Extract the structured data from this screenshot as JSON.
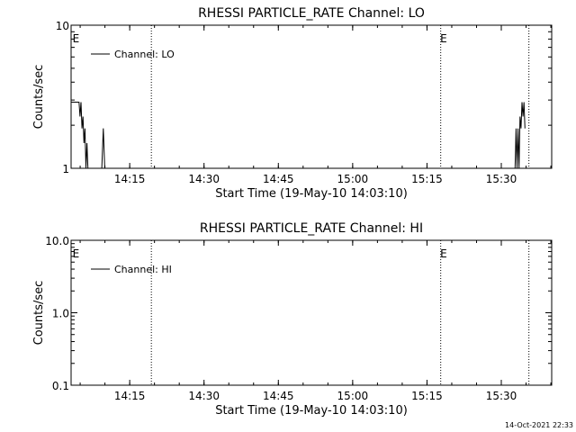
{
  "footer_timestamp": "14-Oct-2021 22:33",
  "chart_data": [
    {
      "type": "line",
      "title": "RHESSI PARTICLE_RATE Channel: LO",
      "xlabel": "Start Time (19-May-10 14:03:10)",
      "ylabel": "Counts/sec",
      "x_unit": "minutes since 14:03:10",
      "xlim": [
        0,
        97
      ],
      "x_ticks": [
        {
          "label": "14:15",
          "x": 11.83
        },
        {
          "label": "14:30",
          "x": 26.83
        },
        {
          "label": "14:45",
          "x": 41.83
        },
        {
          "label": "15:00",
          "x": 56.83
        },
        {
          "label": "15:15",
          "x": 71.83
        },
        {
          "label": "15:30",
          "x": 86.83
        }
      ],
      "yscale": "log",
      "ylim": [
        1,
        10
      ],
      "y_ticks": [
        {
          "label": "10",
          "y": 10
        },
        {
          "label": "1",
          "y": 1
        }
      ],
      "legend": {
        "label": "Channel: LO",
        "position": "top-left"
      },
      "event_marks": [
        {
          "label": "E",
          "x": 0.3
        },
        {
          "label": "E",
          "x": 74.5
        }
      ],
      "dotted_lines": [
        16.2,
        74.6,
        92.4
      ],
      "segments": [
        [
          [
            0,
            2.9
          ],
          [
            1.6,
            2.9
          ],
          [
            1.8,
            2.3
          ],
          [
            2.0,
            2.9
          ],
          [
            2.2,
            1.9
          ],
          [
            2.4,
            2.3
          ],
          [
            2.6,
            1.5
          ],
          [
            2.8,
            1.9
          ],
          [
            3.0,
            1.0
          ],
          [
            3.2,
            1.5
          ],
          [
            3.4,
            1.0
          ]
        ],
        [
          [
            6.2,
            1.0
          ],
          [
            6.5,
            1.9
          ],
          [
            6.8,
            1.0
          ]
        ],
        [
          [
            89.6,
            1.0
          ],
          [
            89.8,
            1.9
          ],
          [
            90.0,
            1.0
          ],
          [
            90.2,
            1.9
          ],
          [
            90.4,
            1.0
          ],
          [
            90.6,
            2.3
          ],
          [
            90.8,
            1.9
          ],
          [
            91.0,
            2.9
          ],
          [
            91.2,
            2.3
          ],
          [
            91.4,
            2.9
          ],
          [
            91.6,
            1.9
          ]
        ]
      ]
    },
    {
      "type": "line",
      "title": "RHESSI PARTICLE_RATE Channel: HI",
      "xlabel": "Start Time (19-May-10 14:03:10)",
      "ylabel": "Counts/sec",
      "x_unit": "minutes since 14:03:10",
      "xlim": [
        0,
        97
      ],
      "x_ticks": [
        {
          "label": "14:15",
          "x": 11.83
        },
        {
          "label": "14:30",
          "x": 26.83
        },
        {
          "label": "14:45",
          "x": 41.83
        },
        {
          "label": "15:00",
          "x": 56.83
        },
        {
          "label": "15:15",
          "x": 71.83
        },
        {
          "label": "15:30",
          "x": 86.83
        }
      ],
      "yscale": "log",
      "ylim": [
        0.1,
        10
      ],
      "y_ticks": [
        {
          "label": "10.0",
          "y": 10
        },
        {
          "label": "1.0",
          "y": 1
        },
        {
          "label": "0.1",
          "y": 0.1
        }
      ],
      "legend": {
        "label": "Channel: HI",
        "position": "top-left"
      },
      "event_marks": [
        {
          "label": "E",
          "x": 0.3
        },
        {
          "label": "E",
          "x": 74.5
        }
      ],
      "dotted_lines": [
        16.2,
        74.6,
        92.4
      ],
      "segments": []
    }
  ]
}
